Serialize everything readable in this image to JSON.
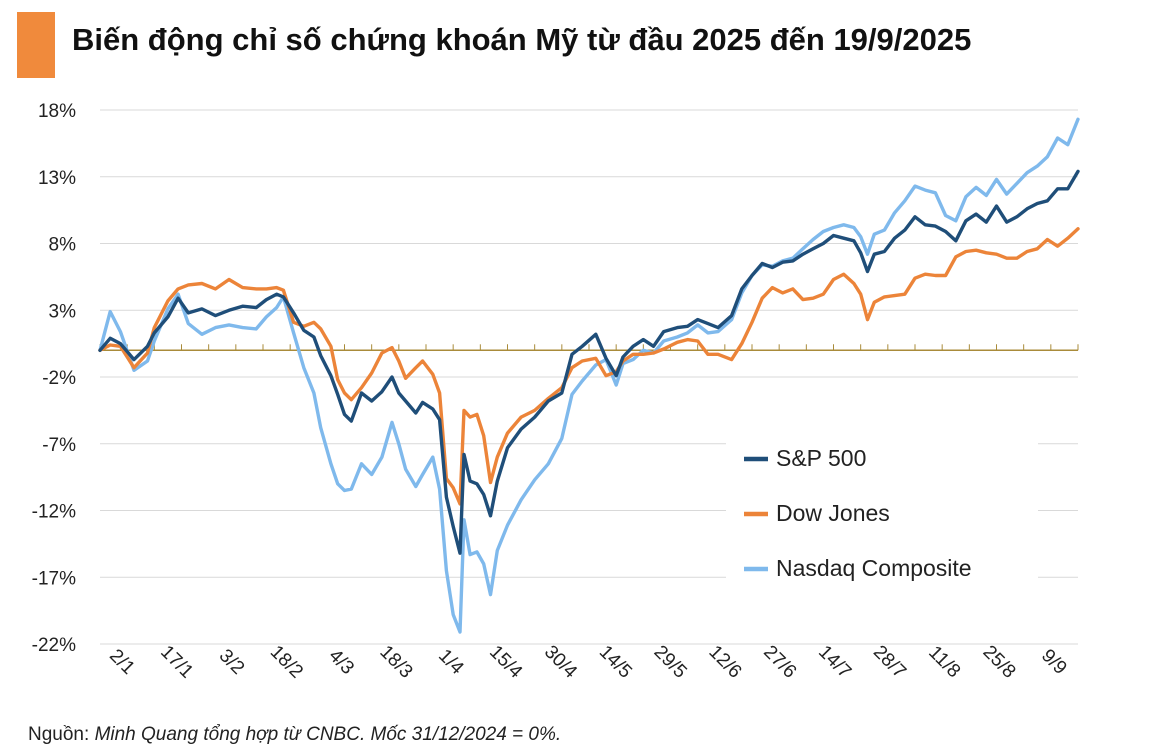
{
  "header": {
    "title": "Biến động chỉ số chứng khoán Mỹ từ đầu 2025 đến 19/9/2025",
    "accent_color": "#f08a3c"
  },
  "footer": {
    "source_label": "Nguồn:",
    "source_text": "Minh Quang tổng hợp từ CNBC. Mốc 31/12/2024 = 0%."
  },
  "chart_data": {
    "type": "line",
    "title": "Biến động chỉ số chứng khoán Mỹ từ đầu 2025 đến 19/9/2025",
    "y_tick_labels": [
      "18%",
      "13%",
      "8%",
      "3%",
      "-2%",
      "-7%",
      "-12%",
      "-17%",
      "-22%"
    ],
    "ylim": [
      -22,
      18
    ],
    "y_unit": "%",
    "x_tick_labels": [
      "2/1",
      "17/1",
      "3/2",
      "18/2",
      "4/3",
      "18/3",
      "1/4",
      "15/4",
      "30/4",
      "14/5",
      "29/5",
      "12/6",
      "27/6",
      "14/7",
      "28/7",
      "11/8",
      "25/8",
      "9/9"
    ],
    "grid": true,
    "zero_line_color": "#a98b3a",
    "legend_position": "right",
    "series": [
      {
        "name": "S&P 500",
        "color": "#1f4e79",
        "points": [
          [
            0,
            0.0
          ],
          [
            1.5,
            0.9
          ],
          [
            3,
            0.5
          ],
          [
            5,
            -0.7
          ],
          [
            7,
            0.3
          ],
          [
            8,
            1.3
          ],
          [
            10,
            2.5
          ],
          [
            11.5,
            3.9
          ],
          [
            13,
            2.8
          ],
          [
            15,
            3.1
          ],
          [
            17,
            2.6
          ],
          [
            19,
            3.0
          ],
          [
            21,
            3.3
          ],
          [
            23,
            3.2
          ],
          [
            24.5,
            3.8
          ],
          [
            26,
            4.2
          ],
          [
            27,
            4.0
          ],
          [
            28.5,
            2.8
          ],
          [
            30,
            1.5
          ],
          [
            31.5,
            1.0
          ],
          [
            32.5,
            -0.4
          ],
          [
            34,
            -1.9
          ],
          [
            35,
            -3.3
          ],
          [
            36,
            -4.8
          ],
          [
            37,
            -5.3
          ],
          [
            38.5,
            -3.2
          ],
          [
            40,
            -3.8
          ],
          [
            41.5,
            -3.1
          ],
          [
            43,
            -2.0
          ],
          [
            44,
            -3.2
          ],
          [
            45,
            -3.8
          ],
          [
            46.5,
            -4.7
          ],
          [
            47.5,
            -3.9
          ],
          [
            49,
            -4.4
          ],
          [
            50,
            -5.2
          ],
          [
            51,
            -11.0
          ],
          [
            52,
            -13.2
          ],
          [
            53,
            -15.2
          ],
          [
            53.6,
            -7.8
          ],
          [
            54.5,
            -9.8
          ],
          [
            55.5,
            -10.0
          ],
          [
            56.5,
            -10.8
          ],
          [
            57.5,
            -12.4
          ],
          [
            58.5,
            -9.8
          ],
          [
            60,
            -7.3
          ],
          [
            62,
            -5.9
          ],
          [
            64,
            -5.0
          ],
          [
            66,
            -3.8
          ],
          [
            68,
            -3.2
          ],
          [
            69.5,
            -0.3
          ],
          [
            71,
            0.3
          ],
          [
            73,
            1.2
          ],
          [
            74.5,
            -0.6
          ],
          [
            76,
            -1.9
          ],
          [
            77,
            -0.5
          ],
          [
            78.5,
            0.3
          ],
          [
            80,
            0.8
          ],
          [
            81.5,
            0.3
          ],
          [
            83,
            1.4
          ],
          [
            85,
            1.7
          ],
          [
            86.5,
            1.8
          ],
          [
            88,
            2.3
          ],
          [
            89.5,
            2.0
          ],
          [
            91,
            1.7
          ],
          [
            93,
            2.6
          ],
          [
            94.5,
            4.6
          ],
          [
            96,
            5.6
          ],
          [
            97.5,
            6.5
          ],
          [
            99,
            6.2
          ],
          [
            100.5,
            6.6
          ],
          [
            102,
            6.7
          ],
          [
            103.5,
            7.2
          ],
          [
            105,
            7.6
          ],
          [
            106.5,
            8.0
          ],
          [
            108,
            8.6
          ],
          [
            109.5,
            8.4
          ],
          [
            111,
            8.2
          ],
          [
            112,
            7.3
          ],
          [
            113,
            5.9
          ],
          [
            114,
            7.2
          ],
          [
            115.5,
            7.4
          ],
          [
            117,
            8.4
          ],
          [
            118.5,
            9.0
          ],
          [
            120,
            10.0
          ],
          [
            121.5,
            9.4
          ],
          [
            123,
            9.3
          ],
          [
            124.5,
            8.9
          ],
          [
            126,
            8.2
          ],
          [
            127.5,
            9.7
          ],
          [
            129,
            10.2
          ],
          [
            130.5,
            9.6
          ],
          [
            132,
            10.8
          ],
          [
            133.5,
            9.6
          ],
          [
            135,
            10.0
          ],
          [
            136.5,
            10.6
          ],
          [
            138,
            11.0
          ],
          [
            139.5,
            11.2
          ],
          [
            141,
            12.1
          ],
          [
            142.5,
            12.1
          ],
          [
            144,
            13.4
          ]
        ]
      },
      {
        "name": "Dow Jones",
        "color": "#ec8439",
        "points": [
          [
            0,
            0.0
          ],
          [
            1.5,
            0.4
          ],
          [
            3,
            0.3
          ],
          [
            5,
            -1.3
          ],
          [
            7,
            -0.2
          ],
          [
            8,
            1.7
          ],
          [
            10,
            3.7
          ],
          [
            11.5,
            4.6
          ],
          [
            13,
            4.9
          ],
          [
            15,
            5.0
          ],
          [
            17,
            4.6
          ],
          [
            19,
            5.3
          ],
          [
            21,
            4.7
          ],
          [
            23,
            4.6
          ],
          [
            24.5,
            4.6
          ],
          [
            26,
            4.7
          ],
          [
            27,
            4.5
          ],
          [
            28.5,
            2.1
          ],
          [
            30,
            1.8
          ],
          [
            31.5,
            2.1
          ],
          [
            32.5,
            1.6
          ],
          [
            34,
            0.3
          ],
          [
            35,
            -2.2
          ],
          [
            36,
            -3.2
          ],
          [
            37,
            -3.7
          ],
          [
            38.5,
            -2.8
          ],
          [
            40,
            -1.7
          ],
          [
            41.5,
            -0.2
          ],
          [
            43,
            0.2
          ],
          [
            44,
            -0.8
          ],
          [
            45,
            -2.1
          ],
          [
            46.5,
            -1.3
          ],
          [
            47.5,
            -0.8
          ],
          [
            49,
            -1.8
          ],
          [
            50,
            -3.2
          ],
          [
            51,
            -9.6
          ],
          [
            52,
            -10.3
          ],
          [
            53,
            -11.5
          ],
          [
            53.6,
            -4.5
          ],
          [
            54.5,
            -5.0
          ],
          [
            55.5,
            -4.8
          ],
          [
            56.5,
            -6.4
          ],
          [
            57.5,
            -9.9
          ],
          [
            58.5,
            -8.0
          ],
          [
            60,
            -6.2
          ],
          [
            62,
            -5.0
          ],
          [
            64,
            -4.5
          ],
          [
            66,
            -3.6
          ],
          [
            68,
            -2.8
          ],
          [
            69.5,
            -1.3
          ],
          [
            71,
            -0.8
          ],
          [
            73,
            -0.6
          ],
          [
            74.5,
            -1.9
          ],
          [
            76,
            -1.6
          ],
          [
            77,
            -0.8
          ],
          [
            78.5,
            -0.3
          ],
          [
            80,
            -0.3
          ],
          [
            81.5,
            -0.2
          ],
          [
            83,
            0.1
          ],
          [
            85,
            0.6
          ],
          [
            86.5,
            0.8
          ],
          [
            88,
            0.7
          ],
          [
            89.5,
            -0.3
          ],
          [
            91,
            -0.3
          ],
          [
            93,
            -0.7
          ],
          [
            94.5,
            0.5
          ],
          [
            96,
            2.1
          ],
          [
            97.5,
            3.9
          ],
          [
            99,
            4.7
          ],
          [
            100.5,
            4.3
          ],
          [
            102,
            4.6
          ],
          [
            103.5,
            3.8
          ],
          [
            105,
            3.9
          ],
          [
            106.5,
            4.2
          ],
          [
            108,
            5.3
          ],
          [
            109.5,
            5.7
          ],
          [
            111,
            5.0
          ],
          [
            112,
            4.2
          ],
          [
            113,
            2.3
          ],
          [
            114,
            3.6
          ],
          [
            115.5,
            4.0
          ],
          [
            117,
            4.1
          ],
          [
            118.5,
            4.2
          ],
          [
            120,
            5.4
          ],
          [
            121.5,
            5.7
          ],
          [
            123,
            5.6
          ],
          [
            124.5,
            5.6
          ],
          [
            126,
            7.0
          ],
          [
            127.5,
            7.4
          ],
          [
            129,
            7.5
          ],
          [
            130.5,
            7.3
          ],
          [
            132,
            7.2
          ],
          [
            133.5,
            6.9
          ],
          [
            135,
            6.9
          ],
          [
            136.5,
            7.4
          ],
          [
            138,
            7.6
          ],
          [
            139.5,
            8.3
          ],
          [
            141,
            7.8
          ],
          [
            142.5,
            8.4
          ],
          [
            144,
            9.1
          ]
        ]
      },
      {
        "name": "Nasdaq Composite",
        "color": "#7fb9ec",
        "points": [
          [
            0,
            0.0
          ],
          [
            1.5,
            2.9
          ],
          [
            3,
            1.4
          ],
          [
            5,
            -1.5
          ],
          [
            7,
            -0.8
          ],
          [
            8,
            0.7
          ],
          [
            10,
            3.1
          ],
          [
            11.5,
            4.2
          ],
          [
            13,
            2.0
          ],
          [
            15,
            1.2
          ],
          [
            17,
            1.7
          ],
          [
            19,
            1.9
          ],
          [
            21,
            1.7
          ],
          [
            23,
            1.6
          ],
          [
            24.5,
            2.5
          ],
          [
            26,
            3.2
          ],
          [
            27,
            4.0
          ],
          [
            28.5,
            1.3
          ],
          [
            30,
            -1.3
          ],
          [
            31.5,
            -3.2
          ],
          [
            32.5,
            -5.8
          ],
          [
            34,
            -8.5
          ],
          [
            35,
            -10.0
          ],
          [
            36,
            -10.5
          ],
          [
            37,
            -10.4
          ],
          [
            38.5,
            -8.5
          ],
          [
            40,
            -9.3
          ],
          [
            41.5,
            -8.0
          ],
          [
            43,
            -5.4
          ],
          [
            44,
            -7.0
          ],
          [
            45,
            -8.9
          ],
          [
            46.5,
            -10.2
          ],
          [
            47.5,
            -9.3
          ],
          [
            49,
            -8.0
          ],
          [
            50,
            -10.4
          ],
          [
            51,
            -16.5
          ],
          [
            52,
            -19.8
          ],
          [
            53,
            -21.1
          ],
          [
            53.6,
            -12.7
          ],
          [
            54.5,
            -15.3
          ],
          [
            55.5,
            -15.1
          ],
          [
            56.5,
            -16.0
          ],
          [
            57.5,
            -18.3
          ],
          [
            58.5,
            -15.0
          ],
          [
            60,
            -13.1
          ],
          [
            62,
            -11.2
          ],
          [
            64,
            -9.7
          ],
          [
            66,
            -8.5
          ],
          [
            68,
            -6.6
          ],
          [
            69.5,
            -3.3
          ],
          [
            71,
            -2.3
          ],
          [
            73,
            -1.1
          ],
          [
            74.5,
            -0.7
          ],
          [
            76,
            -2.6
          ],
          [
            77,
            -1.0
          ],
          [
            78.5,
            -0.7
          ],
          [
            80,
            0.0
          ],
          [
            81.5,
            -0.2
          ],
          [
            83,
            0.7
          ],
          [
            85,
            1.0
          ],
          [
            86.5,
            1.3
          ],
          [
            88,
            1.9
          ],
          [
            89.5,
            1.3
          ],
          [
            91,
            1.4
          ],
          [
            93,
            2.3
          ],
          [
            94.5,
            4.3
          ],
          [
            96,
            5.6
          ],
          [
            97.5,
            6.4
          ],
          [
            99,
            6.3
          ],
          [
            100.5,
            6.7
          ],
          [
            102,
            6.9
          ],
          [
            103.5,
            7.6
          ],
          [
            105,
            8.3
          ],
          [
            106.5,
            8.9
          ],
          [
            108,
            9.2
          ],
          [
            109.5,
            9.4
          ],
          [
            111,
            9.2
          ],
          [
            112,
            8.5
          ],
          [
            113,
            7.2
          ],
          [
            114,
            8.7
          ],
          [
            115.5,
            9.0
          ],
          [
            117,
            10.3
          ],
          [
            118.5,
            11.2
          ],
          [
            120,
            12.3
          ],
          [
            121.5,
            12.0
          ],
          [
            123,
            11.8
          ],
          [
            124.5,
            10.1
          ],
          [
            126,
            9.7
          ],
          [
            127.5,
            11.5
          ],
          [
            129,
            12.2
          ],
          [
            130.5,
            11.6
          ],
          [
            132,
            12.8
          ],
          [
            133.5,
            11.7
          ],
          [
            135,
            12.5
          ],
          [
            136.5,
            13.3
          ],
          [
            138,
            13.8
          ],
          [
            139.5,
            14.5
          ],
          [
            141,
            15.9
          ],
          [
            142.5,
            15.4
          ],
          [
            144,
            17.3
          ]
        ]
      }
    ]
  }
}
